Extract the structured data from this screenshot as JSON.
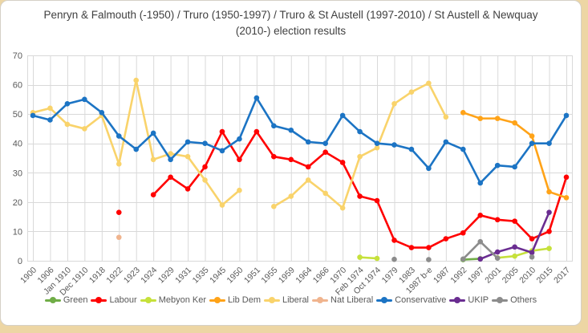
{
  "chart_title": "Penryn & Falmouth (-1950) / Truro (1950-1997) / Truro & St Austell (1997-2010) / St Austell & Newquay (2010-) election results",
  "chart_data": {
    "type": "line",
    "title": "Penryn & Falmouth (-1950) / Truro (1950-1997) / Truro & St Austell (1997-2010) / St Austell & Newquay (2010-) election results",
    "ylabel": "",
    "xlabel": "",
    "ylim": [
      0,
      70
    ],
    "yticks": [
      0,
      10,
      20,
      30,
      40,
      50,
      60,
      70
    ],
    "grid": true,
    "legend_position": "bottom",
    "categories": [
      "1900",
      "1906",
      "Jan 1910",
      "Dec 1910",
      "1918",
      "1922",
      "1923",
      "1924",
      "1929",
      "1931",
      "1935",
      "1945",
      "1950",
      "1951",
      "1955",
      "1959",
      "1964",
      "1966",
      "1970",
      "Feb 1974",
      "Oct 1974",
      "1979",
      "1983",
      "1987 b-e",
      "1987",
      "1992",
      "1997",
      "2001",
      "2005",
      "2010",
      "2015",
      "2017"
    ],
    "series": [
      {
        "name": "Green",
        "color": "#70AD47",
        "values": [
          null,
          null,
          null,
          null,
          null,
          null,
          null,
          null,
          null,
          null,
          null,
          null,
          null,
          null,
          null,
          null,
          null,
          null,
          null,
          null,
          null,
          null,
          null,
          null,
          null,
          0.4,
          0.7,
          null,
          null,
          null,
          null,
          null
        ]
      },
      {
        "name": "Labour",
        "color": "#FF0000",
        "values": [
          null,
          null,
          null,
          null,
          null,
          16.5,
          null,
          22.5,
          28.5,
          24.5,
          32,
          44,
          34.5,
          44,
          35.5,
          34.5,
          32,
          37,
          33.5,
          22,
          20.5,
          7,
          4.5,
          4.5,
          7.5,
          9.5,
          15.5,
          14,
          13.5,
          7.5,
          10,
          28.5
        ]
      },
      {
        "name": "Mebyon Ker",
        "color": "#C6E13B",
        "values": [
          null,
          null,
          null,
          null,
          null,
          null,
          null,
          null,
          null,
          null,
          null,
          null,
          null,
          null,
          null,
          null,
          null,
          null,
          null,
          1.2,
          0.8,
          null,
          null,
          null,
          null,
          null,
          null,
          1.0,
          1.6,
          3.4,
          4.2,
          null
        ]
      },
      {
        "name": "Lib Dem",
        "color": "#FFA318",
        "values": [
          null,
          null,
          null,
          null,
          null,
          null,
          null,
          null,
          null,
          null,
          null,
          null,
          null,
          null,
          null,
          null,
          null,
          null,
          null,
          null,
          null,
          null,
          null,
          null,
          null,
          50.5,
          48.5,
          48.5,
          47,
          42.5,
          23.5,
          21.5
        ]
      },
      {
        "name": "Liberal",
        "color": "#F9D36B",
        "values": [
          50.5,
          52,
          46.5,
          45,
          49.5,
          33,
          61.5,
          34.5,
          36.5,
          35.5,
          27.5,
          19,
          24,
          null,
          18.5,
          22,
          27.5,
          23,
          18,
          35.5,
          38.5,
          53.5,
          57.5,
          60.5,
          49,
          null,
          null,
          null,
          null,
          null,
          null,
          null
        ]
      },
      {
        "name": "Nat Liberal",
        "color": "#F0B48E",
        "values": [
          null,
          null,
          null,
          null,
          null,
          8,
          null,
          null,
          null,
          null,
          null,
          null,
          null,
          null,
          null,
          null,
          null,
          null,
          null,
          null,
          null,
          null,
          null,
          null,
          null,
          null,
          null,
          null,
          null,
          null,
          null,
          null
        ]
      },
      {
        "name": "Conservative",
        "color": "#1C74C4",
        "values": [
          49.5,
          48,
          53.5,
          55,
          50.5,
          42.5,
          38,
          43.5,
          34.5,
          40.5,
          40,
          37.5,
          41.5,
          55.5,
          46,
          44.5,
          40.5,
          40,
          49.5,
          44,
          40,
          39.5,
          38,
          31.5,
          40.5,
          38,
          26.5,
          32.5,
          32,
          40,
          40,
          49.5
        ]
      },
      {
        "name": "UKIP",
        "color": "#6A2D91",
        "values": [
          null,
          null,
          null,
          null,
          null,
          null,
          null,
          null,
          null,
          null,
          null,
          null,
          null,
          null,
          null,
          null,
          null,
          null,
          null,
          null,
          null,
          null,
          null,
          null,
          null,
          null,
          0.6,
          3.0,
          4.7,
          2.8,
          16.5,
          null
        ]
      },
      {
        "name": "Others",
        "color": "#8C8C8C",
        "values": [
          null,
          null,
          null,
          null,
          null,
          null,
          null,
          null,
          null,
          null,
          null,
          null,
          null,
          null,
          null,
          null,
          null,
          null,
          null,
          null,
          null,
          0.5,
          null,
          0.4,
          null,
          0.6,
          6.5,
          0.9,
          null,
          1.3,
          null,
          null
        ]
      }
    ]
  }
}
